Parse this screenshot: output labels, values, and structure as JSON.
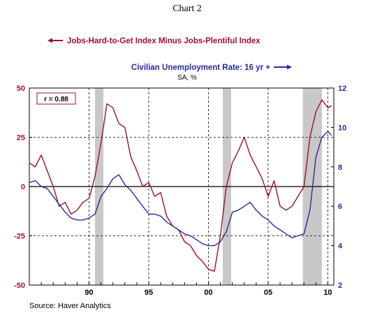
{
  "chart_data": {
    "type": "line",
    "title": "Chart 2",
    "subtitle": "SA, %",
    "source": "Source: Haver Analytics",
    "annotation": "r = 0.88",
    "colors": {
      "left": "#a0102c",
      "right": "#2a2a9c",
      "recession": "#c8c8c8"
    },
    "left_axis": {
      "range": [
        -50,
        50
      ],
      "ticks": [
        "-50",
        "-25",
        "0",
        "25",
        "50"
      ],
      "tick_values": [
        -50,
        -25,
        0,
        25,
        50
      ]
    },
    "right_axis": {
      "range": [
        2,
        12
      ],
      "ticks": [
        "2",
        "4",
        "6",
        "8",
        "10",
        "12"
      ],
      "tick_values": [
        2,
        4,
        6,
        8,
        10,
        12
      ]
    },
    "x_axis": {
      "range": [
        1985.0,
        2010.5
      ],
      "ticks": [
        "90",
        "95",
        "00",
        "05",
        "10"
      ],
      "tick_values": [
        1990,
        1995,
        2000,
        2005,
        2010
      ]
    },
    "recessions": [
      [
        1990.5,
        1991.2
      ],
      [
        2001.2,
        2001.9
      ],
      [
        2007.9,
        2009.5
      ]
    ],
    "series": [
      {
        "name": "Jobs-Hard-to-Get Index Minus Jobs-Plentiful Index",
        "axis": "left",
        "color": "#a0102c",
        "x": [
          1985.0,
          1985.5,
          1986.0,
          1986.5,
          1987.0,
          1987.5,
          1988.0,
          1988.5,
          1989.0,
          1989.5,
          1990.0,
          1990.5,
          1991.0,
          1991.5,
          1992.0,
          1992.5,
          1993.0,
          1993.5,
          1994.0,
          1994.5,
          1995.0,
          1995.5,
          1996.0,
          1996.5,
          1997.0,
          1997.5,
          1998.0,
          1998.5,
          1999.0,
          1999.5,
          2000.0,
          2000.5,
          2001.0,
          2001.5,
          2002.0,
          2002.5,
          2003.0,
          2003.5,
          2004.0,
          2004.5,
          2005.0,
          2005.5,
          2006.0,
          2006.5,
          2007.0,
          2007.5,
          2008.0,
          2008.5,
          2009.0,
          2009.5,
          2010.0,
          2010.3
        ],
        "y": [
          12,
          10,
          16,
          8,
          0,
          -10,
          -8,
          -14,
          -12,
          -8,
          -6,
          5,
          22,
          42,
          40,
          32,
          30,
          15,
          8,
          0,
          2,
          -5,
          -3,
          -15,
          -20,
          -22,
          -28,
          -30,
          -35,
          -38,
          -42,
          -43,
          -25,
          0,
          12,
          18,
          25,
          16,
          10,
          4,
          -5,
          3,
          -10,
          -12,
          -10,
          -5,
          0,
          25,
          38,
          44,
          40,
          41
        ]
      },
      {
        "name": "Civilian Unemployment Rate: 16 yr +",
        "axis": "right",
        "color": "#2a2a9c",
        "x": [
          1985.0,
          1985.5,
          1986.0,
          1986.5,
          1987.0,
          1987.5,
          1988.0,
          1988.5,
          1989.0,
          1989.5,
          1990.0,
          1990.5,
          1991.0,
          1991.5,
          1992.0,
          1992.5,
          1993.0,
          1993.5,
          1994.0,
          1994.5,
          1995.0,
          1995.5,
          1996.0,
          1996.5,
          1997.0,
          1997.5,
          1998.0,
          1998.5,
          1999.0,
          1999.5,
          2000.0,
          2000.5,
          2001.0,
          2001.5,
          2002.0,
          2002.5,
          2003.0,
          2003.5,
          2004.0,
          2004.5,
          2005.0,
          2005.5,
          2006.0,
          2006.5,
          2007.0,
          2007.5,
          2008.0,
          2008.5,
          2009.0,
          2009.5,
          2010.0,
          2010.3
        ],
        "y": [
          7.2,
          7.3,
          7.0,
          6.9,
          6.5,
          6.1,
          5.7,
          5.4,
          5.3,
          5.3,
          5.4,
          5.6,
          6.5,
          6.9,
          7.4,
          7.6,
          7.1,
          6.8,
          6.4,
          6.0,
          5.6,
          5.6,
          5.5,
          5.2,
          5.0,
          4.8,
          4.6,
          4.5,
          4.3,
          4.1,
          4.0,
          4.0,
          4.2,
          4.7,
          5.7,
          5.8,
          6.0,
          6.2,
          5.8,
          5.5,
          5.3,
          5.0,
          4.8,
          4.6,
          4.4,
          4.5,
          4.6,
          5.8,
          8.5,
          9.5,
          9.8,
          9.6
        ]
      }
    ]
  }
}
